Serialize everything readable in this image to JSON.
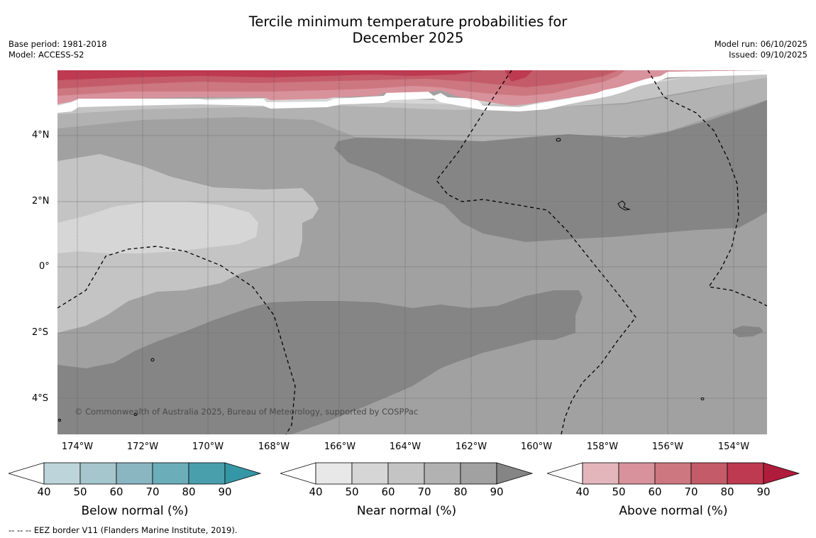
{
  "title_line1": "Tercile minimum temperature probabilities for",
  "title_line2": "December 2025",
  "base_period": "Base period: 1981-2018",
  "model": "Model: ACCESS-S2",
  "model_run": "Model run: 06/10/2025",
  "issued": "Issued: 09/10/2025",
  "copyright": "© Commonwealth of Australia 2025, Bureau of Meteorology, supported by COSPPac",
  "y_ticks": [
    "4°N",
    "2°N",
    "0°",
    "2°S",
    "4°S"
  ],
  "x_ticks": [
    "174°W",
    "172°W",
    "170°W",
    "168°W",
    "166°W",
    "164°W",
    "162°W",
    "160°W",
    "158°W",
    "156°W",
    "154°W"
  ],
  "colorbars": [
    {
      "label": "Below normal (%)",
      "ticks": [
        "40",
        "50",
        "60",
        "70",
        "80",
        "90"
      ],
      "colors": [
        "#ffffff",
        "#bdd4da",
        "#a5c6cc",
        "#8ab6c1",
        "#6baeba",
        "#4a9fad",
        "#3596a5"
      ]
    },
    {
      "label": "Near normal (%)",
      "ticks": [
        "40",
        "50",
        "60",
        "70",
        "80",
        "90"
      ],
      "colors": [
        "#ffffff",
        "#e8e8e8",
        "#d6d6d6",
        "#c4c4c4",
        "#b2b2b2",
        "#a1a1a1",
        "#858585"
      ]
    },
    {
      "label": "Above normal (%)",
      "ticks": [
        "40",
        "50",
        "60",
        "70",
        "80",
        "90"
      ],
      "colors": [
        "#ffffff",
        "#e3b6bc",
        "#d8929b",
        "#cd7780",
        "#c45b68",
        "#bd3a50",
        "#b01c3c"
      ]
    }
  ],
  "footer": "--  --  -- EEZ border V11 (Flanders Marine Institute, 2019)."
}
